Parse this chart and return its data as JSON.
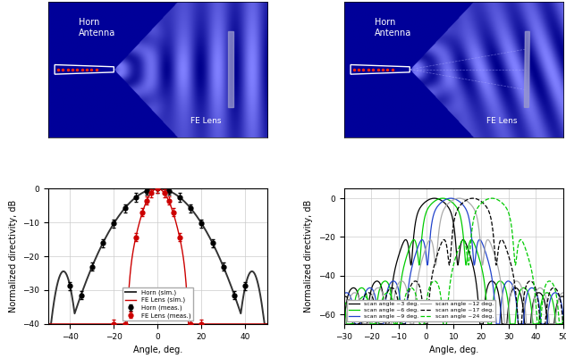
{
  "left_plot": {
    "xlim": [
      -50,
      50
    ],
    "ylim": [
      -40,
      0
    ],
    "xticks": [
      -40,
      -20,
      0,
      20,
      40
    ],
    "yticks": [
      0,
      -10,
      -20,
      -30,
      -40
    ],
    "xlabel": "Angle, deg.",
    "ylabel": "Normalized directivity, dB",
    "horn_sim_color": "#333333",
    "fe_sim_color": "#cc0000",
    "horn_meas_color": "#000000",
    "fe_meas_color": "#cc0000"
  },
  "right_plot": {
    "xlim": [
      -30,
      50
    ],
    "ylim": [
      -65,
      5
    ],
    "xticks": [
      -30,
      -20,
      -10,
      0,
      10,
      20,
      30,
      40,
      50
    ],
    "yticks": [
      0,
      -20,
      -40,
      -60
    ],
    "xlabel": "Angle, deg.",
    "ylabel": "Normalized directivity, dB",
    "scan_angles": [
      3,
      6,
      9,
      12,
      17,
      24
    ],
    "colors": [
      "#000000",
      "#00cc00",
      "#2244cc",
      "#aaaaaa",
      "#000000",
      "#00cc00"
    ],
    "styles": [
      "solid",
      "solid",
      "solid",
      "solid",
      "dashed",
      "dashed"
    ],
    "labels": [
      "scan angle ~3 deg.",
      "scan angle ~6 deg.",
      "scan angle ~9 deg.",
      "scan angle ~12 deg.",
      "scan angle ~17 deg.",
      "scan angle ~24 deg."
    ]
  },
  "img_bg_color": "#0000cc",
  "img_wave_color": "#ffffff"
}
